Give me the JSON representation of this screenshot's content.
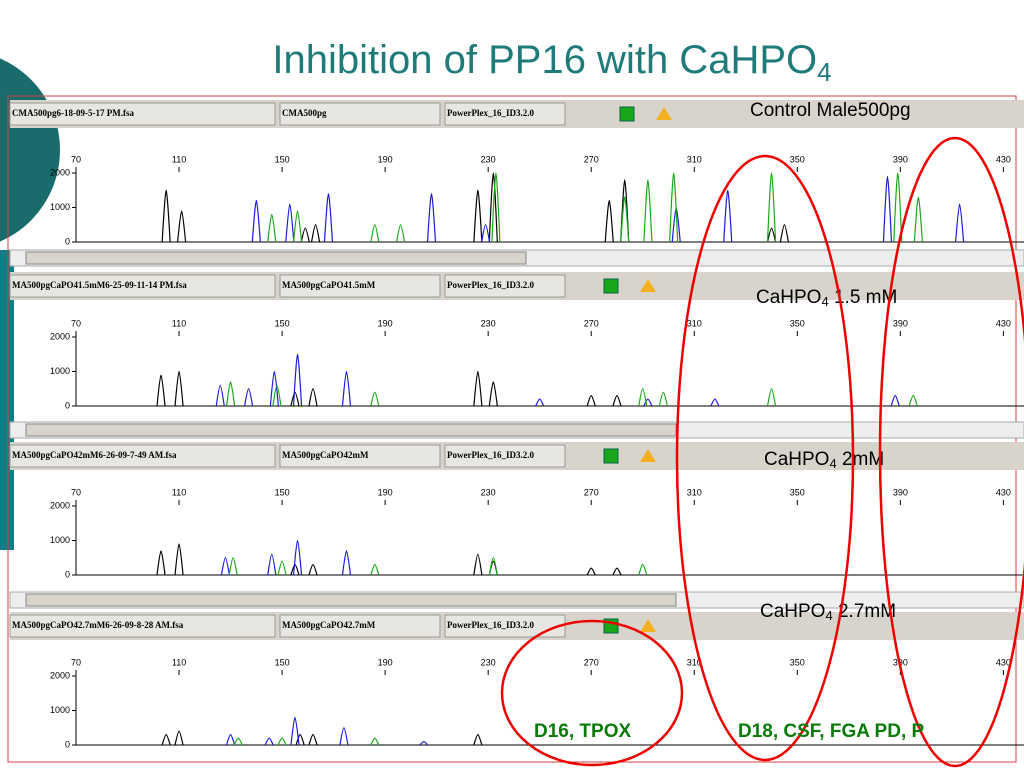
{
  "title": {
    "text": "Inhibition of PP16 with CaHPO",
    "sub": "4"
  },
  "panels": [
    {
      "file": "CMA500pg6-18-09-5-17 PM.fsa",
      "sample": "CMA500pg",
      "kit": "PowerPlex_16_ID3.2.0",
      "label": {
        "text": "Control Male500pg"
      }
    },
    {
      "file": "MA500pgCaPO41.5mM6-25-09-11-14 PM.fsa",
      "sample": "MA500pgCaPO41.5mM",
      "kit": "PowerPlex_16_ID3.2.0",
      "label": {
        "text": "CaHPO",
        "sub": "4",
        "rest": " 1.5 mM"
      }
    },
    {
      "file": "MA500pgCaPO42mM6-26-09-7-49 AM.fsa",
      "sample": "MA500pgCaPO42mM",
      "kit": "PowerPlex_16_ID3.2.0",
      "label": {
        "text": "CaHPO",
        "sub": "4",
        "rest": " 2mM"
      }
    },
    {
      "file": "MA500pgCaPO42.7mM6-26-09-8-28 AM.fsa",
      "sample": "MA500pgCaPO42.7mM",
      "kit": "PowerPlex_16_ID3.2.0",
      "label": {
        "text": "CaHPO",
        "sub": "4",
        "rest": " 2.7mM"
      }
    }
  ],
  "loci": [
    "D16, TPOX",
    "D18, CSF, FGA PD, P"
  ],
  "chart_data": [
    {
      "type": "peaks",
      "xlim": [
        70,
        438
      ],
      "xticks": [
        70,
        110,
        150,
        190,
        230,
        270,
        310,
        350,
        390,
        430
      ],
      "ylim": [
        0,
        2000
      ],
      "yticks": [
        0,
        1000,
        2000
      ],
      "series": [
        {
          "color": "#000000",
          "x": [
            105,
            111,
            159,
            163,
            226,
            232,
            277,
            283,
            340,
            345
          ],
          "values": [
            1500,
            900,
            400,
            500,
            1500,
            2000,
            1200,
            1800,
            400,
            500
          ]
        },
        {
          "color": "#1a1adc",
          "x": [
            140,
            153,
            168,
            208,
            229,
            303,
            323,
            385,
            413
          ],
          "values": [
            1200,
            1100,
            1400,
            1400,
            500,
            1000,
            1500,
            1900,
            1100
          ]
        },
        {
          "color": "#18a818",
          "x": [
            146,
            156,
            186,
            196,
            233,
            283,
            292,
            302,
            340,
            389,
            397
          ],
          "values": [
            800,
            900,
            500,
            500,
            2000,
            1300,
            1800,
            2000,
            2000,
            2000,
            1300
          ]
        }
      ]
    },
    {
      "type": "peaks",
      "xlim": [
        70,
        438
      ],
      "xticks": [
        70,
        110,
        150,
        190,
        230,
        270,
        310,
        350,
        390,
        430
      ],
      "ylim": [
        0,
        2000
      ],
      "yticks": [
        0,
        1000,
        2000
      ],
      "series": [
        {
          "color": "#000000",
          "x": [
            103,
            110,
            155,
            162,
            226,
            232,
            270,
            280
          ],
          "values": [
            900,
            1000,
            400,
            500,
            1000,
            700,
            300,
            300
          ]
        },
        {
          "color": "#1a1adc",
          "x": [
            126,
            137,
            147,
            156,
            175,
            250,
            292,
            318,
            388
          ],
          "values": [
            600,
            500,
            1000,
            1500,
            1000,
            200,
            200,
            200,
            300
          ]
        },
        {
          "color": "#18a818",
          "x": [
            130,
            148,
            186,
            290,
            298,
            340,
            395
          ],
          "values": [
            700,
            600,
            400,
            500,
            400,
            500,
            300
          ]
        }
      ]
    },
    {
      "type": "peaks",
      "xlim": [
        70,
        438
      ],
      "xticks": [
        70,
        110,
        150,
        190,
        230,
        270,
        310,
        350,
        390,
        430
      ],
      "ylim": [
        0,
        2000
      ],
      "yticks": [
        0,
        1000,
        2000
      ],
      "series": [
        {
          "color": "#000000",
          "x": [
            103,
            110,
            155,
            162,
            226,
            232,
            270,
            280
          ],
          "values": [
            700,
            900,
            300,
            300,
            600,
            400,
            200,
            200
          ]
        },
        {
          "color": "#1a1adc",
          "x": [
            128,
            146,
            156,
            175
          ],
          "values": [
            500,
            600,
            1000,
            700
          ]
        },
        {
          "color": "#18a818",
          "x": [
            131,
            150,
            186,
            232,
            290
          ],
          "values": [
            500,
            400,
            300,
            500,
            300
          ]
        }
      ]
    },
    {
      "type": "peaks",
      "xlim": [
        70,
        438
      ],
      "xticks": [
        70,
        110,
        150,
        190,
        230,
        270,
        310,
        350,
        390,
        430
      ],
      "ylim": [
        0,
        2000
      ],
      "yticks": [
        0,
        1000,
        2000
      ],
      "series": [
        {
          "color": "#000000",
          "x": [
            105,
            110,
            157,
            162,
            226
          ],
          "values": [
            300,
            400,
            300,
            300,
            300
          ]
        },
        {
          "color": "#1a1adc",
          "x": [
            130,
            145,
            155,
            174,
            205
          ],
          "values": [
            300,
            200,
            800,
            500,
            100
          ]
        },
        {
          "color": "#18a818",
          "x": [
            133,
            150,
            186
          ],
          "values": [
            200,
            200,
            200
          ]
        }
      ]
    }
  ]
}
